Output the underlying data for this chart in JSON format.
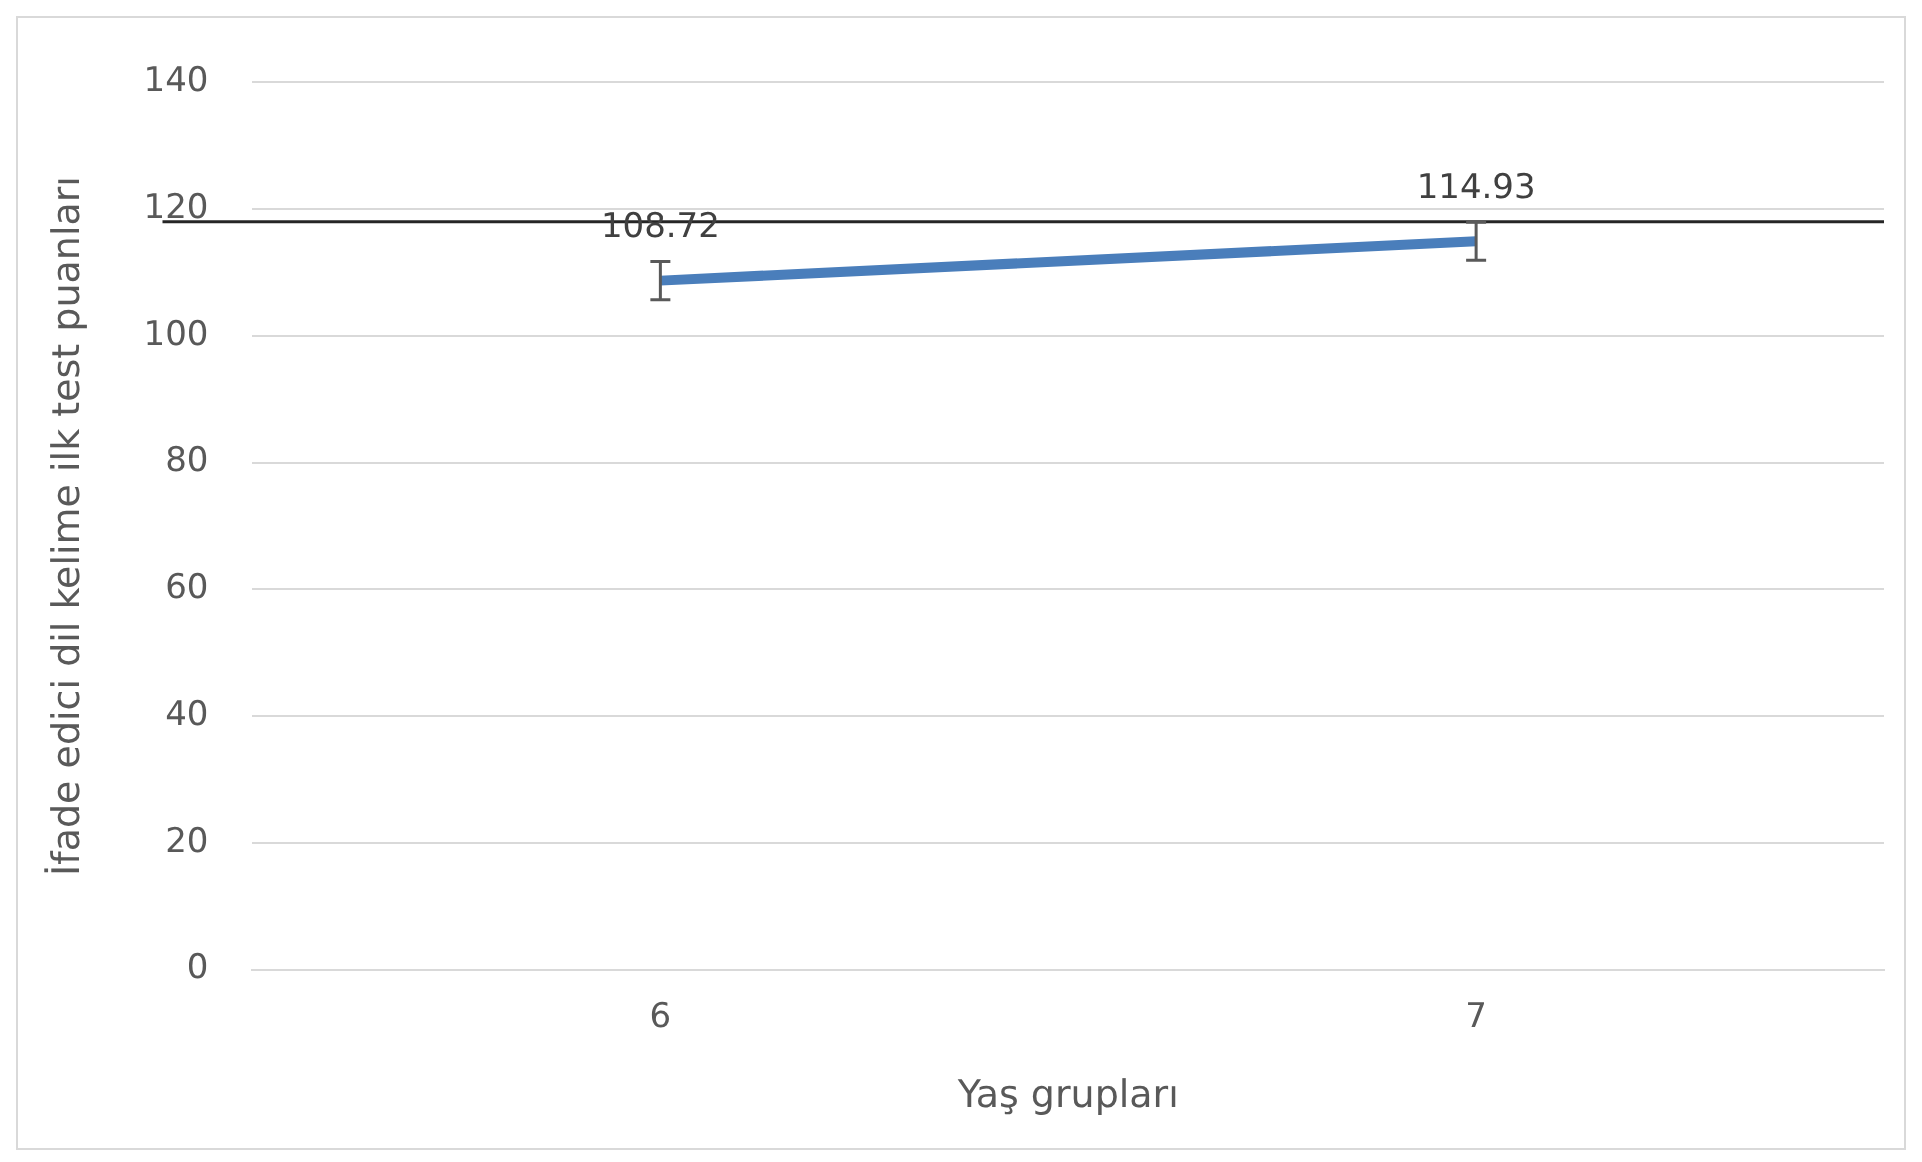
{
  "chart_data": {
    "type": "line",
    "xlabel": "Yaş grupları",
    "ylabel": "İfade edici dil kelime ilk test puanları",
    "categories": [
      "6",
      "7"
    ],
    "series": [
      {
        "color": "#4a7ebb",
        "values": [
          108.72,
          114.93
        ],
        "errors": [
          3,
          3
        ]
      }
    ],
    "ylim": [
      0,
      140
    ],
    "yticks": [
      0,
      20,
      40,
      60,
      80,
      100,
      120,
      140
    ],
    "grid": "y",
    "legend": false,
    "marker": "none",
    "data_labels": true,
    "ref_lines": [
      {
        "axis": "y",
        "value": 118,
        "color": "#262626"
      }
    ]
  }
}
